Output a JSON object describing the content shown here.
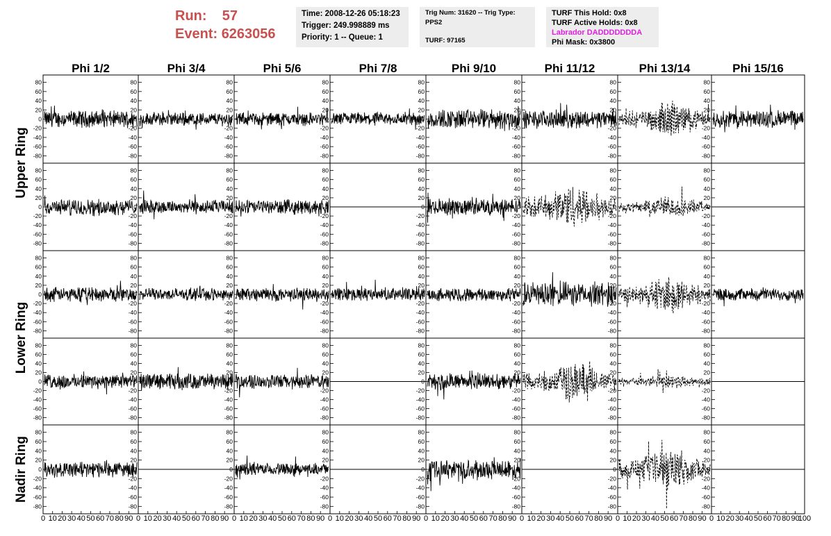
{
  "header": {
    "run_label": "Run:",
    "run_value": "57",
    "event_label": "Event:",
    "event_value": "6263056",
    "time": "Time: 2008-12-26 05:18:23",
    "trigger": "Trigger: 249.998889 ms",
    "priority": "Priority: 1 -- Queue: 1",
    "trig_num": "Trig Num: 31620 -- Trig Type: PPS2",
    "turf": "TURF: 97165",
    "turf_hold": "TURF This Hold: 0x8",
    "turf_active": "TURF Active Holds: 0x8",
    "labrador": "Labrador DADDDDDDDA",
    "phi_mask": "Phi Mask: 0x3800"
  },
  "colors": {
    "header_red": "#c8504f",
    "labrador_magenta": "#e020e0",
    "box_bg": "#ededed"
  },
  "chart_data": {
    "type": "line",
    "phi_labels": [
      "Phi 1/2",
      "Phi 3/4",
      "Phi 5/6",
      "Phi 7/8",
      "Phi 9/10",
      "Phi 11/12",
      "Phi 13/14",
      "Phi 15/16"
    ],
    "ring_labels": [
      {
        "name": "Upper Ring",
        "rows": [
          0,
          1
        ]
      },
      {
        "name": "Lower Ring",
        "rows": [
          2,
          3
        ]
      },
      {
        "name": "Nadir Ring",
        "rows": [
          4,
          4
        ]
      }
    ],
    "ylim": [
      -90,
      90
    ],
    "y_ticks": [
      -80,
      -60,
      -40,
      -20,
      0,
      20,
      40,
      60,
      80
    ],
    "xlim": [
      0,
      100
    ],
    "x_tick_labels": [
      "0",
      "10",
      "20",
      "30",
      "40",
      "50",
      "60",
      "70",
      "80",
      "90",
      "100"
    ],
    "grid": false,
    "cells": [
      [
        "solid-15",
        "solid-12",
        "solid-12",
        "solid-12",
        "solid-18",
        "solid-16",
        "dashed-24",
        "solid-16"
      ],
      [
        "solid-14",
        "solid-13",
        "solid-13",
        "flat",
        "solid-15",
        "dashed-32",
        "dashed-16",
        "flat"
      ],
      [
        "solid-13",
        "solid-11",
        "solid-12",
        "solid-12",
        "solid-12",
        "solid-22",
        "dashed-26",
        "solid-11"
      ],
      [
        "solid-13",
        "solid-15",
        "solid-13",
        "flat",
        "solid-15",
        "dashed-28",
        "dashed-11",
        "flat"
      ],
      [
        "solid-14",
        "flat",
        "solid-11",
        "flat",
        "solid-17",
        "flat",
        "dashed-30",
        "flat"
      ]
    ]
  }
}
